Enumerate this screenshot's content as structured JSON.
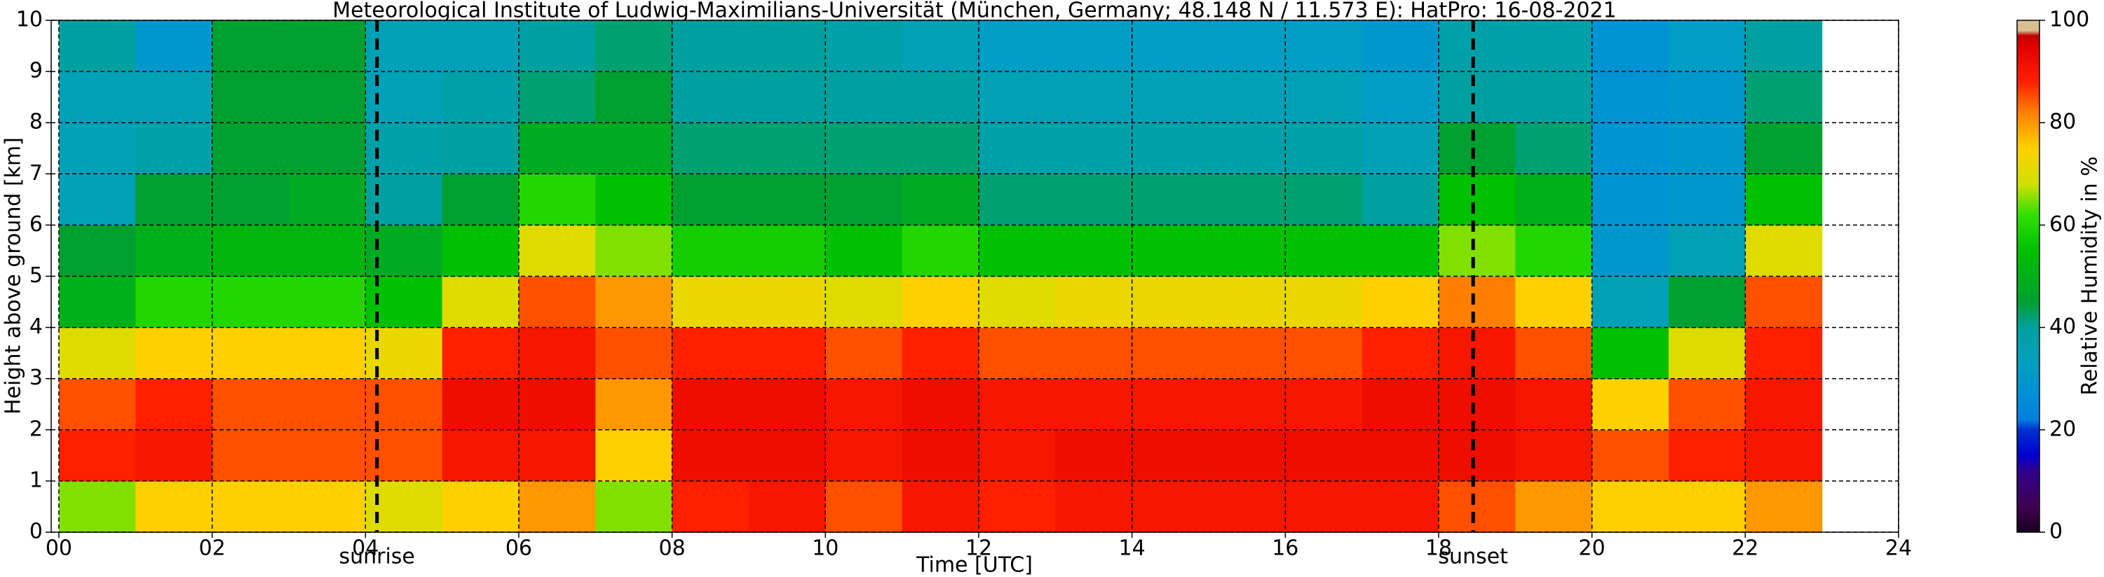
{
  "chart_data": {
    "type": "heatmap",
    "title": "Meteorological Institute of Ludwig-Maximilians-Universität (München, Germany; 48.148 N / 11.573 E):    HatPro: 16-08-2021",
    "xlabel": "Time [UTC]",
    "ylabel": "Height above ground [km]",
    "colorbar_label": "Relative Humidity in %",
    "x_bins": [
      0,
      1,
      2,
      3,
      4,
      5,
      6,
      7,
      8,
      9,
      10,
      11,
      12,
      13,
      14,
      15,
      16,
      17,
      18,
      19,
      20,
      21,
      22,
      23
    ],
    "y_bins": [
      0,
      1,
      2,
      3,
      4,
      5,
      6,
      7,
      8,
      9,
      10
    ],
    "z": [
      [
        65,
        88,
        85,
        70,
        50,
        45,
        35,
        35,
        35,
        40
      ],
      [
        75,
        90,
        88,
        75,
        60,
        50,
        45,
        38,
        35,
        30
      ],
      [
        75,
        85,
        85,
        75,
        60,
        52,
        45,
        45,
        45,
        45
      ],
      [
        75,
        85,
        85,
        75,
        60,
        52,
        48,
        45,
        45,
        45
      ],
      [
        70,
        85,
        85,
        72,
        55,
        48,
        40,
        38,
        35,
        35
      ],
      [
        75,
        90,
        92,
        88,
        70,
        55,
        45,
        40,
        38,
        35
      ],
      [
        80,
        90,
        92,
        90,
        85,
        70,
        60,
        48,
        42,
        40
      ],
      [
        65,
        75,
        80,
        85,
        80,
        65,
        55,
        48,
        45,
        42
      ],
      [
        88,
        92,
        92,
        88,
        72,
        58,
        45,
        42,
        40,
        40
      ],
      [
        90,
        92,
        92,
        88,
        72,
        58,
        45,
        42,
        40,
        40
      ],
      [
        85,
        90,
        90,
        85,
        70,
        55,
        45,
        42,
        40,
        38
      ],
      [
        90,
        92,
        92,
        88,
        75,
        60,
        48,
        42,
        40,
        35
      ],
      [
        88,
        90,
        90,
        85,
        70,
        55,
        42,
        38,
        35,
        32
      ],
      [
        90,
        92,
        90,
        85,
        72,
        55,
        42,
        38,
        35,
        32
      ],
      [
        90,
        92,
        90,
        85,
        72,
        55,
        42,
        38,
        35,
        32
      ],
      [
        90,
        92,
        90,
        85,
        72,
        55,
        42,
        38,
        35,
        32
      ],
      [
        90,
        92,
        90,
        85,
        72,
        55,
        42,
        38,
        35,
        32
      ],
      [
        90,
        92,
        92,
        88,
        75,
        55,
        40,
        35,
        32,
        30
      ],
      [
        85,
        92,
        92,
        90,
        82,
        65,
        55,
        45,
        40,
        38
      ],
      [
        80,
        90,
        90,
        85,
        75,
        60,
        50,
        42,
        40,
        38
      ],
      [
        75,
        85,
        75,
        55,
        35,
        30,
        28,
        28,
        28,
        28
      ],
      [
        75,
        88,
        85,
        70,
        45,
        35,
        30,
        30,
        30,
        32
      ],
      [
        80,
        90,
        90,
        88,
        85,
        70,
        55,
        45,
        42,
        40
      ]
    ],
    "xlim": [
      -0.1,
      24
    ],
    "ylim": [
      0,
      10
    ],
    "xticks": [
      {
        "value": 0,
        "label": "00"
      },
      {
        "value": 2,
        "label": "02"
      },
      {
        "value": 4,
        "label": "04"
      },
      {
        "value": 6,
        "label": "06"
      },
      {
        "value": 8,
        "label": "08"
      },
      10,
      12,
      14,
      16,
      18,
      20,
      22,
      24
    ],
    "yticks": [
      0,
      1,
      2,
      3,
      4,
      5,
      6,
      7,
      8,
      9,
      10
    ],
    "grid": true,
    "clim": [
      0,
      100
    ],
    "cticks": [
      0,
      20,
      40,
      60,
      80,
      100
    ],
    "colorscale": [
      [
        0,
        "#1a0020"
      ],
      [
        5,
        "#400050"
      ],
      [
        12,
        "#300090"
      ],
      [
        15,
        "#0000cc"
      ],
      [
        20,
        "#0030d0"
      ],
      [
        22,
        "#0080e0"
      ],
      [
        27,
        "#0090d8"
      ],
      [
        33,
        "#00a0c0"
      ],
      [
        40,
        "#00a0a0"
      ],
      [
        45,
        "#00a030"
      ],
      [
        55,
        "#00c000"
      ],
      [
        62,
        "#30e000"
      ],
      [
        68,
        "#d0e000"
      ],
      [
        75,
        "#ffd000"
      ],
      [
        82,
        "#ff8000"
      ],
      [
        88,
        "#ff2000"
      ],
      [
        95,
        "#e00000"
      ],
      [
        97,
        "#c00000"
      ],
      [
        98,
        "#d8c090"
      ],
      [
        100,
        "#d8c090"
      ]
    ],
    "annotations": [
      {
        "text": "sunrise",
        "x": 4.15
      },
      {
        "text": "sunset",
        "x": 18.45
      }
    ]
  }
}
